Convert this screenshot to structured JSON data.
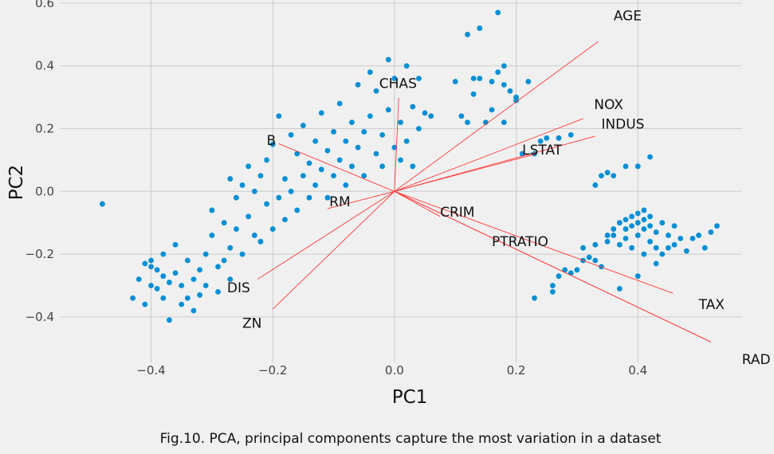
{
  "caption": "Fig.10. PCA, principal components capture the most variation in a dataset",
  "chart_data": {
    "type": "scatter",
    "title": "",
    "xlabel": "PC1",
    "ylabel": "PC2",
    "xlim": [
      -0.55,
      0.57
    ],
    "ylim": [
      -0.545,
      0.61
    ],
    "xticks": [
      -0.4,
      -0.2,
      0.0,
      0.2,
      0.4
    ],
    "yticks": [
      -0.4,
      -0.2,
      0.0,
      0.2,
      0.4,
      0.6
    ],
    "xtick_labels": [
      "−0.4",
      "−0.2",
      "0.0",
      "0.2",
      "0.4"
    ],
    "ytick_labels": [
      "−0.4",
      "−0.2",
      "0.0",
      "0.2",
      "0.4",
      "0.6"
    ],
    "grid": true,
    "point_color": "#008fd5",
    "vector_color": "#ff3b3b",
    "points": [
      [
        -0.48,
        -0.04
      ],
      [
        -0.43,
        -0.34
      ],
      [
        -0.42,
        -0.28
      ],
      [
        -0.41,
        -0.36
      ],
      [
        -0.41,
        -0.23
      ],
      [
        -0.4,
        -0.24
      ],
      [
        -0.4,
        -0.22
      ],
      [
        -0.4,
        -0.3
      ],
      [
        -0.39,
        -0.31
      ],
      [
        -0.39,
        -0.25
      ],
      [
        -0.38,
        -0.27
      ],
      [
        -0.38,
        -0.2
      ],
      [
        -0.38,
        -0.34
      ],
      [
        -0.37,
        -0.41
      ],
      [
        -0.37,
        -0.29
      ],
      [
        -0.36,
        -0.17
      ],
      [
        -0.36,
        -0.26
      ],
      [
        -0.35,
        -0.36
      ],
      [
        -0.35,
        -0.3
      ],
      [
        -0.34,
        -0.34
      ],
      [
        -0.34,
        -0.22
      ],
      [
        -0.33,
        -0.28
      ],
      [
        -0.33,
        -0.38
      ],
      [
        -0.32,
        -0.25
      ],
      [
        -0.32,
        -0.33
      ],
      [
        -0.31,
        -0.2
      ],
      [
        -0.31,
        -0.3
      ],
      [
        -0.3,
        -0.14
      ],
      [
        -0.3,
        -0.06
      ],
      [
        -0.29,
        -0.24
      ],
      [
        -0.29,
        -0.32
      ],
      [
        -0.28,
        -0.1
      ],
      [
        -0.28,
        -0.22
      ],
      [
        -0.27,
        -0.18
      ],
      [
        -0.27,
        -0.28
      ],
      [
        -0.27,
        0.04
      ],
      [
        -0.26,
        -0.12
      ],
      [
        -0.26,
        -0.02
      ],
      [
        -0.25,
        -0.2
      ],
      [
        -0.25,
        0.02
      ],
      [
        -0.24,
        0.08
      ],
      [
        -0.24,
        -0.08
      ],
      [
        -0.23,
        -0.14
      ],
      [
        -0.23,
        0.0
      ],
      [
        -0.22,
        0.05
      ],
      [
        -0.22,
        -0.16
      ],
      [
        -0.21,
        0.1
      ],
      [
        -0.21,
        -0.04
      ],
      [
        -0.2,
        -0.12
      ],
      [
        -0.2,
        0.15
      ],
      [
        -0.19,
        -0.02
      ],
      [
        -0.19,
        0.24
      ],
      [
        -0.18,
        0.04
      ],
      [
        -0.18,
        -0.09
      ],
      [
        -0.17,
        0.18
      ],
      [
        -0.17,
        0.0
      ],
      [
        -0.16,
        0.12
      ],
      [
        -0.16,
        -0.06
      ],
      [
        -0.15,
        0.21
      ],
      [
        -0.15,
        0.05
      ],
      [
        -0.14,
        0.09
      ],
      [
        -0.14,
        -0.02
      ],
      [
        -0.13,
        0.16
      ],
      [
        -0.13,
        0.02
      ],
      [
        -0.12,
        0.25
      ],
      [
        -0.12,
        0.07
      ],
      [
        -0.11,
        0.13
      ],
      [
        -0.11,
        -0.02
      ],
      [
        -0.1,
        0.19
      ],
      [
        -0.1,
        0.05
      ],
      [
        -0.09,
        0.28
      ],
      [
        -0.09,
        0.1
      ],
      [
        -0.08,
        0.16
      ],
      [
        -0.08,
        0.02
      ],
      [
        -0.07,
        0.22
      ],
      [
        -0.07,
        0.08
      ],
      [
        -0.06,
        0.34
      ],
      [
        -0.06,
        0.14
      ],
      [
        -0.05,
        0.19
      ],
      [
        -0.05,
        0.05
      ],
      [
        -0.04,
        0.38
      ],
      [
        -0.04,
        0.24
      ],
      [
        -0.03,
        0.12
      ],
      [
        -0.03,
        0.32
      ],
      [
        -0.02,
        0.18
      ],
      [
        -0.02,
        0.08
      ],
      [
        -0.01,
        0.42
      ],
      [
        -0.01,
        0.26
      ],
      [
        0.0,
        0.14
      ],
      [
        0.0,
        0.36
      ],
      [
        0.01,
        0.1
      ],
      [
        0.01,
        0.22
      ],
      [
        0.02,
        0.4
      ],
      [
        0.02,
        0.16
      ],
      [
        0.03,
        0.27
      ],
      [
        0.03,
        0.08
      ],
      [
        0.04,
        0.36
      ],
      [
        0.04,
        0.2
      ],
      [
        0.05,
        0.25
      ],
      [
        0.06,
        0.24
      ],
      [
        0.1,
        0.35
      ],
      [
        0.11,
        0.24
      ],
      [
        0.12,
        0.22
      ],
      [
        0.13,
        0.36
      ],
      [
        0.13,
        0.31
      ],
      [
        0.14,
        0.36
      ],
      [
        0.15,
        0.22
      ],
      [
        0.16,
        0.35
      ],
      [
        0.16,
        0.26
      ],
      [
        0.17,
        0.38
      ],
      [
        0.18,
        0.4
      ],
      [
        0.18,
        0.34
      ],
      [
        0.18,
        0.22
      ],
      [
        0.19,
        0.32
      ],
      [
        0.2,
        0.29
      ],
      [
        0.2,
        0.3
      ],
      [
        0.22,
        0.35
      ],
      [
        0.12,
        0.5
      ],
      [
        0.14,
        0.52
      ],
      [
        0.17,
        0.57
      ],
      [
        0.23,
        -0.34
      ],
      [
        0.26,
        -0.3
      ],
      [
        0.26,
        -0.32
      ],
      [
        0.27,
        -0.27
      ],
      [
        0.28,
        -0.25
      ],
      [
        0.29,
        -0.26
      ],
      [
        0.3,
        -0.25
      ],
      [
        0.31,
        -0.22
      ],
      [
        0.31,
        -0.18
      ],
      [
        0.32,
        -0.21
      ],
      [
        0.33,
        -0.17
      ],
      [
        0.33,
        -0.22
      ],
      [
        0.34,
        -0.24
      ],
      [
        0.35,
        -0.14
      ],
      [
        0.35,
        -0.16
      ],
      [
        0.36,
        -0.12
      ],
      [
        0.36,
        -0.14
      ],
      [
        0.37,
        -0.1
      ],
      [
        0.37,
        -0.17
      ],
      [
        0.37,
        -0.31
      ],
      [
        0.38,
        -0.12
      ],
      [
        0.38,
        -0.09
      ],
      [
        0.38,
        -0.15
      ],
      [
        0.39,
        -0.08
      ],
      [
        0.39,
        -0.11
      ],
      [
        0.39,
        -0.18
      ],
      [
        0.4,
        -0.07
      ],
      [
        0.4,
        -0.1
      ],
      [
        0.4,
        -0.14
      ],
      [
        0.4,
        -0.27
      ],
      [
        0.41,
        -0.09
      ],
      [
        0.41,
        -0.12
      ],
      [
        0.41,
        -0.06
      ],
      [
        0.41,
        -0.2
      ],
      [
        0.42,
        -0.08
      ],
      [
        0.42,
        -0.16
      ],
      [
        0.42,
        -0.11
      ],
      [
        0.43,
        -0.18
      ],
      [
        0.43,
        -0.13
      ],
      [
        0.43,
        -0.23
      ],
      [
        0.44,
        -0.1
      ],
      [
        0.44,
        -0.2
      ],
      [
        0.45,
        -0.14
      ],
      [
        0.45,
        -0.18
      ],
      [
        0.46,
        -0.17
      ],
      [
        0.46,
        -0.11
      ],
      [
        0.47,
        -0.15
      ],
      [
        0.48,
        -0.19
      ],
      [
        0.49,
        -0.15
      ],
      [
        0.5,
        -0.14
      ],
      [
        0.51,
        -0.18
      ],
      [
        0.52,
        -0.13
      ],
      [
        0.53,
        -0.11
      ],
      [
        0.33,
        0.02
      ],
      [
        0.34,
        0.05
      ],
      [
        0.35,
        0.06
      ],
      [
        0.36,
        0.05
      ],
      [
        0.38,
        0.08
      ],
      [
        0.4,
        0.08
      ],
      [
        0.42,
        0.11
      ],
      [
        0.24,
        0.16
      ],
      [
        0.25,
        0.17
      ],
      [
        0.27,
        0.17
      ],
      [
        0.29,
        0.18
      ],
      [
        0.21,
        0.12
      ],
      [
        0.23,
        0.12
      ]
    ],
    "vectors": [
      {
        "name": "AGE",
        "x": 0.335,
        "y": 0.478,
        "label_x": 0.36,
        "label_y": 0.545
      },
      {
        "name": "NOX",
        "x": 0.31,
        "y": 0.232,
        "label_x": 0.328,
        "label_y": 0.262
      },
      {
        "name": "INDUS",
        "x": 0.33,
        "y": 0.176,
        "label_x": 0.34,
        "label_y": 0.2
      },
      {
        "name": "LSTAT",
        "x": 0.23,
        "y": 0.118,
        "label_x": 0.21,
        "label_y": 0.118
      },
      {
        "name": "CHAS",
        "x": 0.007,
        "y": 0.298,
        "label_x": -0.025,
        "label_y": 0.33
      },
      {
        "name": "B",
        "x": -0.19,
        "y": 0.152,
        "label_x": -0.21,
        "label_y": 0.148
      },
      {
        "name": "RM",
        "x": -0.11,
        "y": -0.055,
        "label_x": -0.107,
        "label_y": -0.048
      },
      {
        "name": "CRIM",
        "x": 0.075,
        "y": -0.08,
        "label_x": 0.075,
        "label_y": -0.08
      },
      {
        "name": "PTRATIO",
        "x": 0.458,
        "y": -0.325,
        "label_x": 0.16,
        "label_y": -0.175
      },
      {
        "name": "TAX",
        "x": 0.52,
        "y": -0.48,
        "label_x": 0.5,
        "label_y": -0.375
      },
      {
        "name": "RAD",
        "x": 0.52,
        "y": -0.48,
        "label_x": 0.571,
        "label_y": -0.55
      },
      {
        "name": "DIS",
        "x": -0.225,
        "y": -0.28,
        "label_x": -0.275,
        "label_y": -0.322
      },
      {
        "name": "ZN",
        "x": -0.2,
        "y": -0.375,
        "label_x": -0.25,
        "label_y": -0.435
      }
    ]
  }
}
